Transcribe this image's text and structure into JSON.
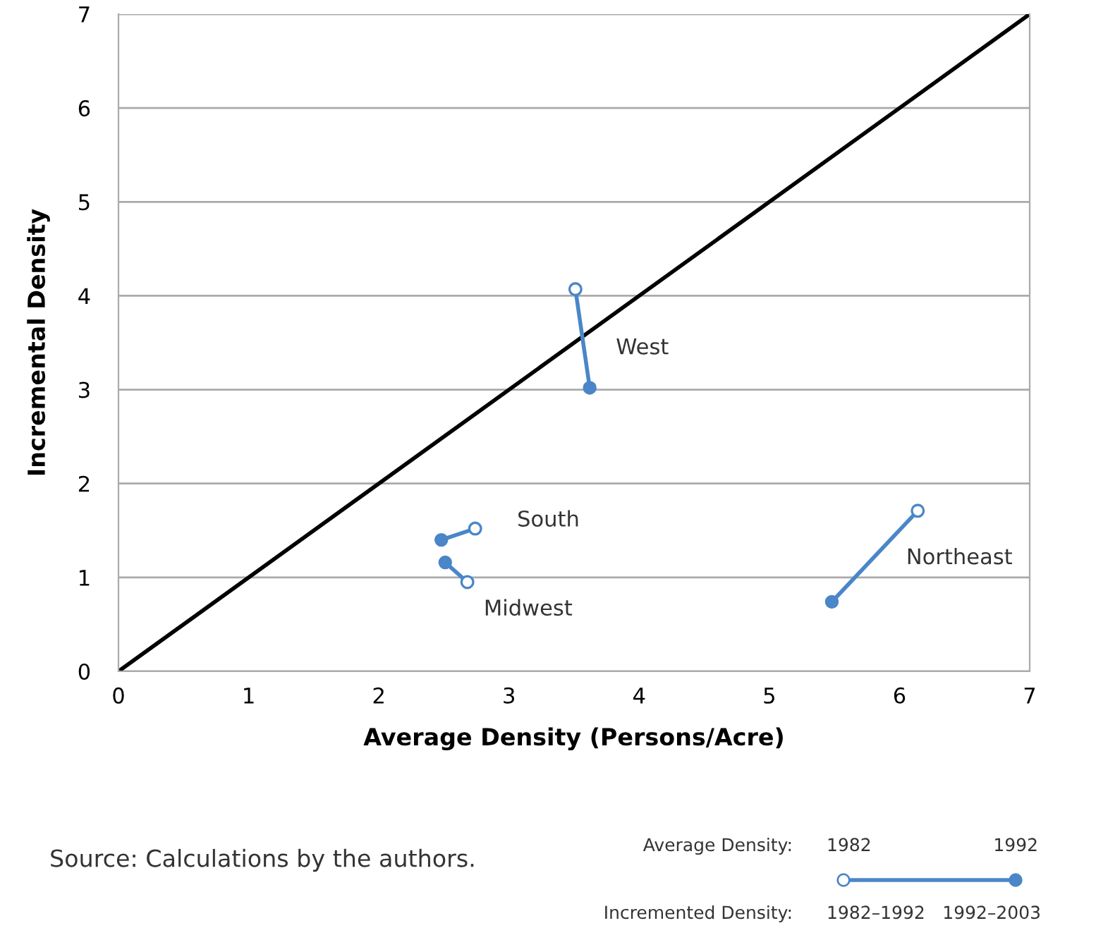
{
  "chart_data": {
    "type": "line",
    "xlabel": "Average Density (Persons/Acre)",
    "ylabel": "Incremental Density",
    "xlim": [
      0,
      7
    ],
    "ylim": [
      0,
      7
    ],
    "xticks": [
      0,
      1,
      2,
      3,
      4,
      5,
      6,
      7
    ],
    "yticks": [
      0,
      1,
      2,
      3,
      4,
      5,
      6,
      7
    ],
    "grid": "y",
    "series": [
      {
        "type": "line",
        "color": "#000000",
        "marker": "none",
        "x": [
          0,
          7
        ],
        "values": [
          0,
          7
        ]
      },
      {
        "name": "West",
        "color": "#4a86c8",
        "marker": "circle",
        "x": [
          3.51,
          3.62
        ],
        "values": [
          4.07,
          3.02
        ]
      },
      {
        "name": "South",
        "color": "#4a86c8",
        "marker": "circle",
        "x": [
          2.74,
          2.48
        ],
        "values": [
          1.52,
          1.4
        ]
      },
      {
        "name": "Midwest",
        "color": "#4a86c8",
        "marker": "circle",
        "x": [
          2.68,
          2.51
        ],
        "values": [
          0.95,
          1.16
        ]
      },
      {
        "name": "Northeast",
        "color": "#4a86c8",
        "marker": "circle",
        "x": [
          6.14,
          5.48
        ],
        "values": [
          1.71,
          0.74
        ]
      }
    ],
    "annotations": [
      "Source: Calculations by the authors.",
      "Average Density:",
      "1982",
      "1992",
      "Incremented Density:",
      "1982–1992",
      "1992–2003"
    ]
  }
}
